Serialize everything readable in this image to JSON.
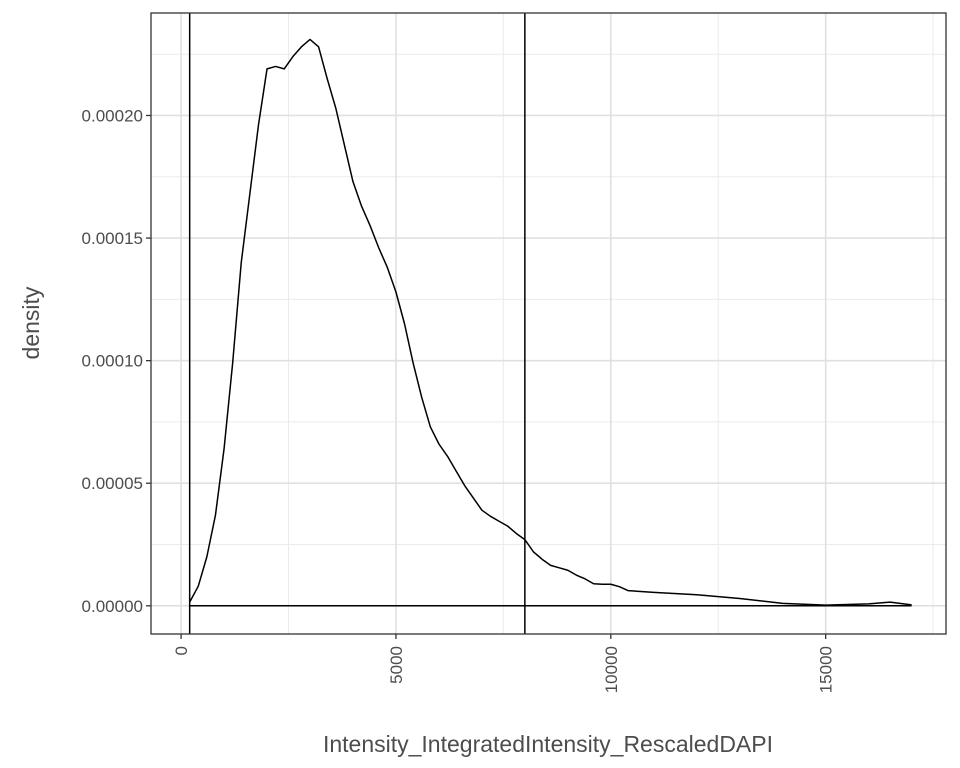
{
  "chart_data": {
    "type": "area",
    "xlabel": "Intensity_IntegratedIntensity_RescaledDAPI",
    "ylabel": "density",
    "xlim": [
      -700,
      17800
    ],
    "ylim": [
      -1.15e-05,
      0.0002418
    ],
    "x_ticks": [
      0,
      5000,
      10000,
      15000
    ],
    "x_tick_labels": [
      "0",
      "5000",
      "10000",
      "15000"
    ],
    "y_ticks": [
      0,
      5e-05,
      0.0001,
      0.00015,
      0.0002
    ],
    "y_tick_labels": [
      "0.00000",
      "0.00005",
      "0.00010",
      "0.00015",
      "0.00020"
    ],
    "x_tick_label_rotation": "vertical",
    "grid": true,
    "theme": "bw",
    "line_color": "#000000",
    "series": [
      {
        "x": [
          200,
          400,
          600,
          800,
          1000,
          1200,
          1400,
          1600,
          1800,
          2000,
          2200,
          2400,
          2600,
          2800,
          3000,
          3200,
          3400,
          3600,
          3800,
          4000,
          4200,
          4400,
          4600,
          4800,
          5000,
          5200,
          5400,
          5600,
          5800,
          6000,
          6200,
          6400,
          6600,
          6800,
          7000,
          7200,
          7400,
          7600,
          7800,
          8000,
          8200,
          8400,
          8600,
          8800,
          9000,
          9200,
          9400,
          9600,
          9800,
          10000,
          10200,
          10400,
          11000,
          12000,
          13000,
          14000,
          15000,
          16000,
          16500,
          17000
        ],
        "y": [
          1.5e-06,
          8e-06,
          2e-05,
          3.7e-05,
          6.4e-05,
          9.9e-05,
          0.00014,
          0.000168,
          0.000196,
          0.000219,
          0.00022,
          0.000219,
          0.000224,
          0.000228,
          0.000231,
          0.000228,
          0.000215,
          0.000203,
          0.000188,
          0.000173,
          0.000163,
          0.000155,
          0.000146,
          0.000138,
          0.000128,
          0.000115,
          9.9e-05,
          8.5e-05,
          7.3e-05,
          6.6e-05,
          6.1e-05,
          5.5e-05,
          4.9e-05,
          4.4e-05,
          3.9e-05,
          3.65e-05,
          3.45e-05,
          3.25e-05,
          2.95e-05,
          2.7e-05,
          2.2e-05,
          1.9e-05,
          1.65e-05,
          1.55e-05,
          1.45e-05,
          1.25e-05,
          1.1e-05,
          9e-06,
          8.8e-06,
          8.8e-06,
          7.8e-06,
          6.2e-06,
          5.5e-06,
          4.5e-06,
          3e-06,
          1e-06,
          3e-07,
          8e-07,
          1.5e-06,
          4e-07
        ]
      }
    ],
    "vertical_lines": [
      200,
      8000
    ],
    "horizontal_segment": {
      "y": 0,
      "x_start": 200,
      "x_end": 17000
    }
  }
}
